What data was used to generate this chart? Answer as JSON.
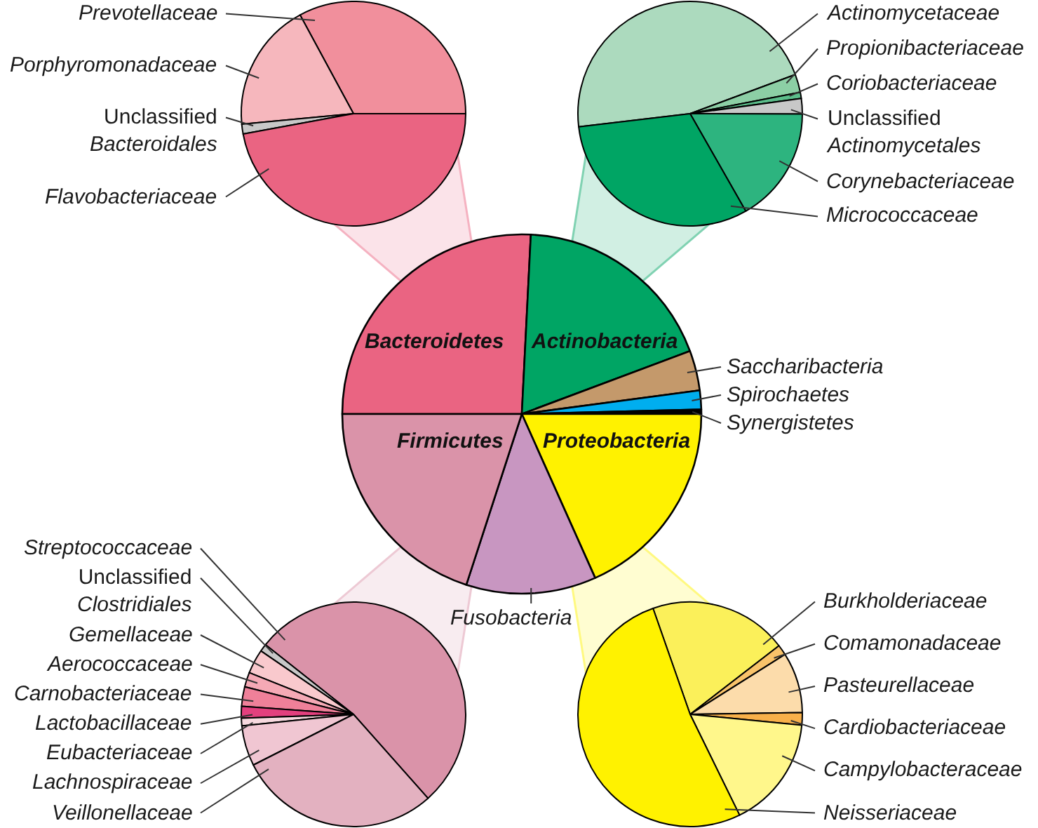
{
  "chart_data": [
    {
      "type": "pie",
      "categories": [
        "Prevotellaceae",
        "Porphyromonadaceae",
        "Unclassified Bacteroidales",
        "Flavobacteriaceae"
      ],
      "values": [
        32.9,
        18.6,
        1.4,
        47.1
      ],
      "colors": [
        "#f18f9c",
        "#f6b7bd",
        "#c8c8c8",
        "#ea6482"
      ]
    },
    {
      "type": "pie",
      "categories": [
        "Actinomycetaceae",
        "Propionibacteriaceae",
        "Coriobacteriaceae",
        "Unclassified Actinomycetales",
        "Corynebacteriaceae",
        "Micrococcaceae"
      ],
      "values": [
        46.2,
        2.6,
        0.9,
        2.2,
        16.7,
        31.4
      ],
      "colors": [
        "#acdabe",
        "#8ccfa5",
        "#5bbd8a",
        "#c8c8c8",
        "#2db47f",
        "#00a564"
      ]
    },
    {
      "type": "pie",
      "categories": [
        "Bacteroidetes",
        "Actinobacteria",
        "Saccharibacteria",
        "Spirochaetes",
        "Synergistetes",
        "Proteobacteria",
        "Fusobacteria",
        "Firmicutes"
      ],
      "values": [
        25.8,
        18.5,
        3.6,
        1.7,
        0.4,
        18.3,
        11.7,
        20.0
      ],
      "colors": [
        "#ea6482",
        "#00a564",
        "#c4996b",
        "#00aeef",
        "#000000",
        "#fff200",
        "#c896c1",
        "#da93a9"
      ]
    },
    {
      "type": "pie",
      "categories": [
        "Streptococcaceae",
        "Unclassified Clostridiales",
        "Gemellaceae",
        "Aerococcaceae",
        "Carnobacteriaceae",
        "Lactobacillaceae",
        "Eubacteriaceae",
        "Lachnospiraceae",
        "Veillonellaceae"
      ],
      "values": [
        52.8,
        1.1,
        3.5,
        2.1,
        2.8,
        1.7,
        1.1,
        5.8,
        29.1
      ],
      "colors": [
        "#da93a9",
        "#c8c8c8",
        "#f9c9cd",
        "#f5a9b5",
        "#ef8099",
        "#e3407e",
        "#f7d9df",
        "#f0c6d2",
        "#e3b1c0"
      ]
    },
    {
      "type": "pie",
      "categories": [
        "Burkholderiaceae",
        "Comamonadaceae",
        "Pasteurellaceae",
        "Cardiobacteriaceae",
        "Campylobacteraceae",
        "Neisseriaceae"
      ],
      "values": [
        19.9,
        1.5,
        8.7,
        1.8,
        16.2,
        51.9
      ],
      "colors": [
        "#fbf05a",
        "#f9c36a",
        "#fcdcab",
        "#f8b04a",
        "#fff78b",
        "#fff200"
      ]
    }
  ]
}
